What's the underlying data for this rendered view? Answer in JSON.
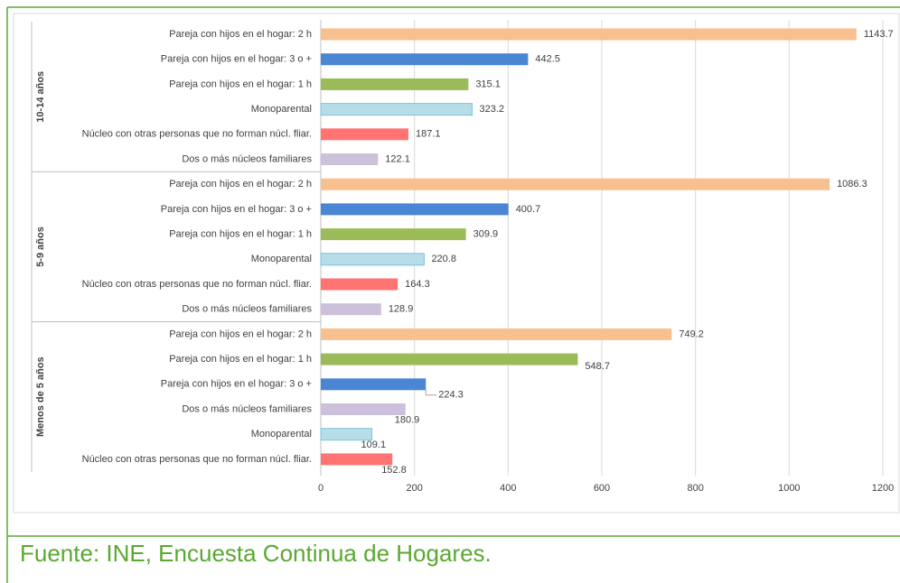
{
  "chart_data": {
    "type": "bar",
    "orientation": "horizontal",
    "groups": [
      {
        "name": "10-14 años",
        "categories": [
          "Pareja con hijos en el hogar: 2 h",
          "Pareja con hijos en el hogar: 3 o +",
          "Pareja con hijos en el hogar: 1 h",
          "Monoparental",
          "Núcleo con otras personas que no forman núcl. fliar.",
          "Dos o más núcleos familiares"
        ],
        "values": [
          1143.7,
          442.5,
          315.1,
          323.2,
          187.1,
          122.1
        ],
        "colors": [
          "#f8c08f",
          "#4a86d4",
          "#9bbb59",
          "#b7dde8",
          "#ff7373",
          "#ccc0da"
        ]
      },
      {
        "name": "5-9 años",
        "categories": [
          "Pareja con hijos en el hogar: 2 h",
          "Pareja con hijos en el hogar: 3 o +",
          "Pareja con hijos en el hogar: 1 h",
          "Monoparental",
          "Núcleo con otras personas que no forman núcl. fliar.",
          "Dos o más núcleos familiares"
        ],
        "values": [
          1086.3,
          400.7,
          309.9,
          220.8,
          164.3,
          128.9
        ],
        "colors": [
          "#f8c08f",
          "#4a86d4",
          "#9bbb59",
          "#b7dde8",
          "#ff7373",
          "#ccc0da"
        ]
      },
      {
        "name": "Menos de 5 años",
        "categories": [
          "Pareja con hijos en el hogar: 2 h",
          "Pareja con hijos en el hogar: 1 h",
          "Pareja con hijos en el hogar: 3 o +",
          "Dos o más núcleos familiares",
          "Monoparental",
          "Núcleo con otras personas que no forman núcl. fliar."
        ],
        "values": [
          749.2,
          548.7,
          224.3,
          180.9,
          109.1,
          152.8
        ],
        "colors": [
          "#f8c08f",
          "#9bbb59",
          "#4a86d4",
          "#ccc0da",
          "#b7dde8",
          "#ff7373"
        ]
      }
    ],
    "xlim": [
      0,
      1200
    ],
    "xticks": [
      0,
      200,
      400,
      600,
      800,
      1000,
      1200
    ],
    "grid": true
  },
  "source": "Fuente: INE, Encuesta Continua de Hogares."
}
